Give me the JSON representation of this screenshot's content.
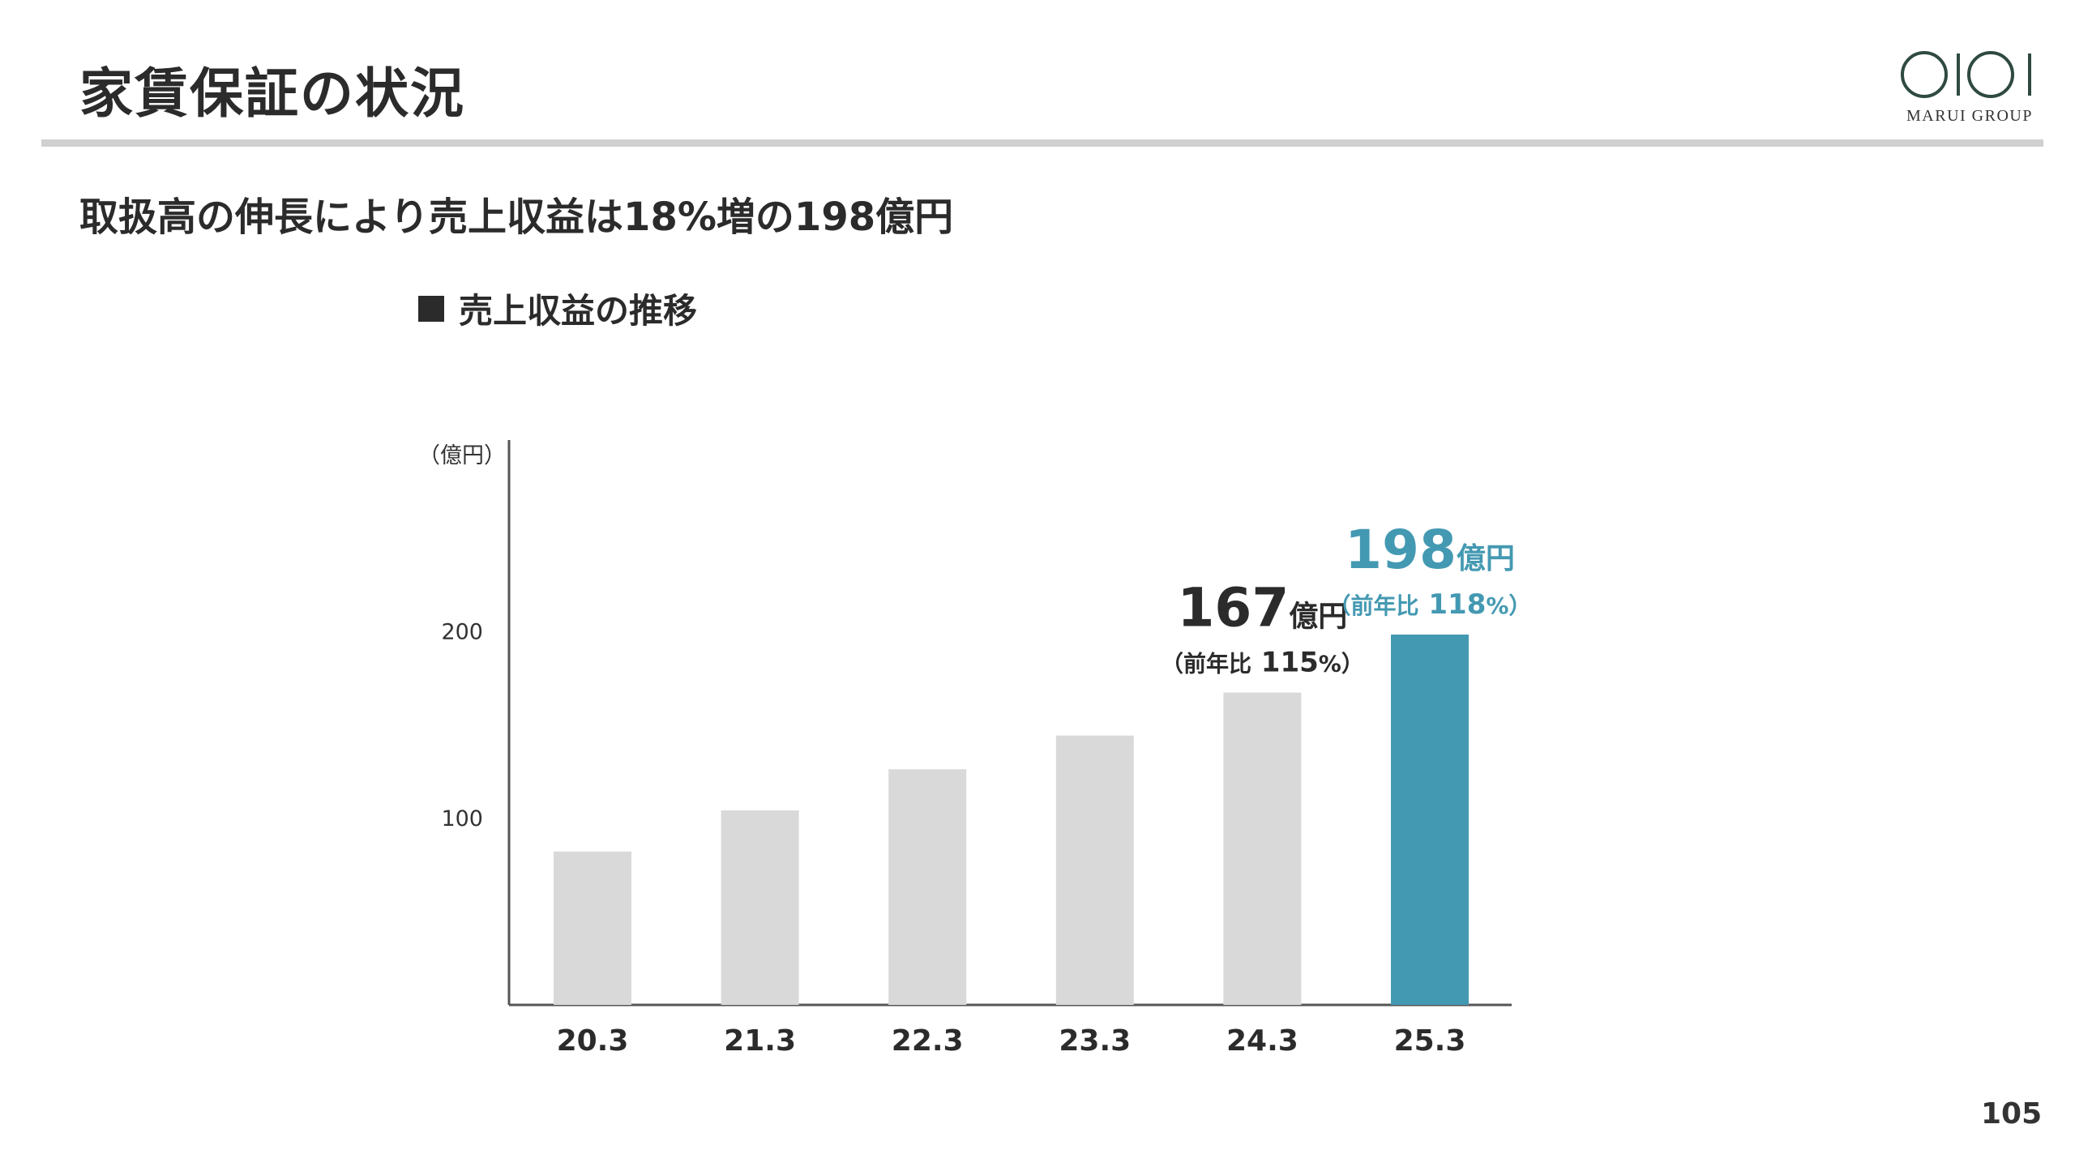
{
  "header": {
    "title": "家賃保証の状況",
    "logo_text": "MARUI GROUP"
  },
  "subtitle": "取扱高の伸長により売上収益は18%増の198億円",
  "chart_heading": "売上収益の推移",
  "page_number": "105",
  "colors": {
    "bar_default": "#d9d9d9",
    "bar_highlight": "#4499b2",
    "axis": "#555555",
    "text_dark": "#2b2b2b"
  },
  "chart_data": {
    "type": "bar",
    "title": "売上収益の推移",
    "ylabel": "（億円）",
    "xlabel": "",
    "categories": [
      "20.3",
      "21.3",
      "22.3",
      "23.3",
      "24.3",
      "25.3"
    ],
    "values": [
      82,
      104,
      126,
      144,
      167,
      198
    ],
    "ylim": [
      0,
      300
    ],
    "yticks": [
      100,
      200
    ],
    "grid": false,
    "highlight_index": 5,
    "annotations": [
      {
        "index": 4,
        "value": "167",
        "unit": "億円",
        "yoy_prefix": "（前年比",
        "yoy_value": "115",
        "yoy_suffix": "%）",
        "color": "#2b2b2b"
      },
      {
        "index": 5,
        "value": "198",
        "unit": "億円",
        "yoy_prefix": "（前年比",
        "yoy_value": "118",
        "yoy_suffix": "%）",
        "color": "#4499b2"
      }
    ]
  }
}
